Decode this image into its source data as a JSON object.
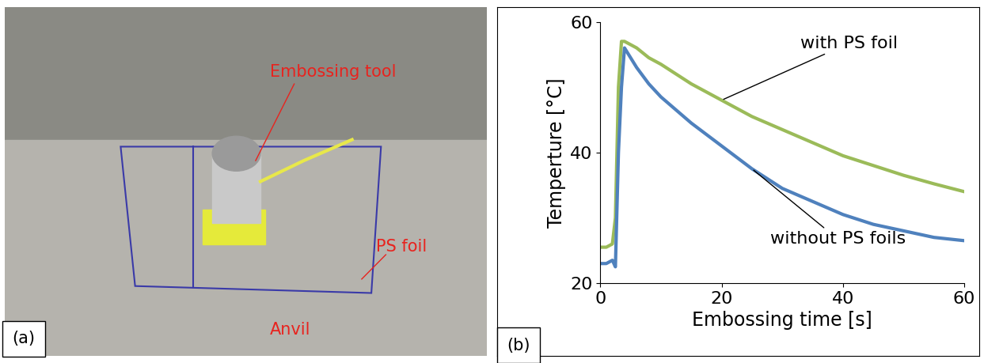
{
  "photo": {
    "panel_label": "(a)",
    "labels": [
      "Embossing tool",
      "PS foil",
      "Anvil"
    ]
  },
  "chart_data": {
    "type": "line",
    "panel_label": "(b)",
    "x_label": "Embossing time [s]",
    "y_label": "Temperture [°C]",
    "x": [
      0,
      1,
      2,
      2.5,
      3,
      3.5,
      4,
      6,
      8,
      10,
      15,
      20,
      25,
      30,
      35,
      40,
      45,
      50,
      55,
      60
    ],
    "series": [
      {
        "name": "with PS foil",
        "color": "#9bbb59",
        "values": [
          25.5,
          25.5,
          26,
          30,
          50,
          57,
          57,
          56,
          54.5,
          53.5,
          50.5,
          48,
          45.5,
          43.5,
          41.5,
          39.5,
          38,
          36.5,
          35.2,
          34
        ]
      },
      {
        "name": "without PS foils",
        "color": "#4f81bd",
        "values": [
          23,
          23,
          23.5,
          22.5,
          40,
          50,
          56,
          53,
          50.5,
          48.5,
          44.5,
          41,
          37.5,
          34.5,
          32.5,
          30.5,
          29,
          28,
          27,
          26.5
        ]
      }
    ],
    "xlim": [
      0,
      60
    ],
    "xticks": [
      0,
      20,
      40,
      60
    ],
    "ylim": [
      20,
      60
    ],
    "yticks": [
      20,
      40,
      60
    ],
    "grid": false
  }
}
